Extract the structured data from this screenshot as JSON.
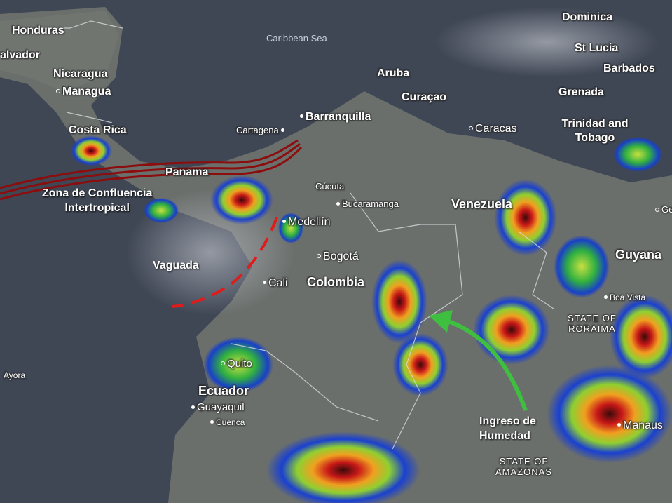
{
  "map": {
    "sea_label": "Caribbean Sea",
    "countries": [
      "Honduras",
      "alvador",
      "Nicaragua",
      "Costa Rica",
      "Panama",
      "Colombia",
      "Venezuela",
      "Ecuador",
      "Guyana"
    ],
    "cities": [
      "Managua",
      "Barranquilla",
      "Cartagena",
      "Aruba",
      "Curaçao",
      "Caracas",
      "Cúcuta",
      "Bucaramanga",
      "Medellín",
      "Bogotá",
      "Cali",
      "Quito",
      "Guayaquil",
      "Cuenca",
      "Boa Vista",
      "Manaus",
      "Ayora",
      "Ge"
    ],
    "islands": [
      "Dominica",
      "St Lucia",
      "Barbados",
      "Grenada",
      "Trinidad and Tobago"
    ],
    "states": [
      "STATE OF RORAIMA",
      "STATE OF AMAZONAS"
    ]
  },
  "annotations": {
    "itcz": "Zona de Confluencia Intertropical",
    "itcz_line1": "Zona de Confluencia",
    "itcz_line2": "Intertropical",
    "trough": "Vaguada",
    "moisture_line1": "Ingreso de",
    "moisture_line2": "Humedad",
    "colors": {
      "itcz": "#8b0d0d",
      "trough": "#e01b1b",
      "moisture_arrow": "#3fbf3f"
    }
  }
}
